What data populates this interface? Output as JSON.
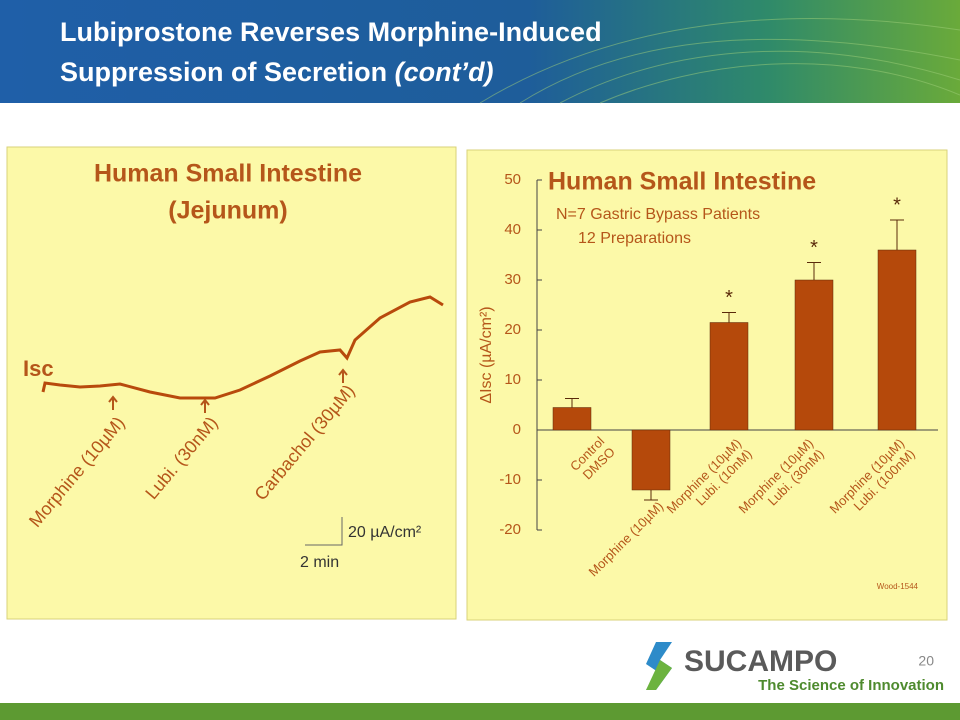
{
  "header": {
    "title_lines": [
      "Lubiprostone Reverses Morphine-Induced",
      "Suppression of Secretion"
    ],
    "title_suffix": "(cont’d)"
  },
  "left_panel": {
    "title_lines": [
      "Human Small Intestine",
      "(Jejunum)"
    ],
    "trace_label": "Isc",
    "events": [
      "Morphine (10µM)",
      "Lubi. (30nM)",
      "Carbachol (30µM)"
    ],
    "scale_y": "20 µA/cm²",
    "scale_x": "2 min"
  },
  "chart_data": {
    "type": "bar",
    "title": "Human Small Intestine",
    "subtitle_lines": [
      "N=7 Gastric Bypass Patients",
      "12 Preparations"
    ],
    "y_label": "ΔIsc (µA/cm²)",
    "categories": [
      [
        "Control",
        "DMSO"
      ],
      [
        "Morphine (10µM)"
      ],
      [
        "Morphine (10µM)",
        "Lubi. (10nM)"
      ],
      [
        "Morphine (10µM)",
        "Lubi. (30nM)"
      ],
      [
        "Morphine (10µM)",
        "Lubi. (100nM)"
      ]
    ],
    "values": [
      4.5,
      -12,
      21.5,
      30,
      36
    ],
    "errors": [
      1.8,
      2,
      2,
      3.5,
      6
    ],
    "significance": [
      null,
      null,
      "*",
      "*",
      "*"
    ],
    "color": "#b5490b",
    "ylim": [
      -20,
      50
    ],
    "yticks": [
      -20,
      -10,
      0,
      10,
      20,
      30,
      40,
      50
    ],
    "note": "Wood-1544"
  },
  "footer": {
    "company": "SUCAMPO",
    "tagline": "The Science of Innovation",
    "page_number": "20"
  }
}
